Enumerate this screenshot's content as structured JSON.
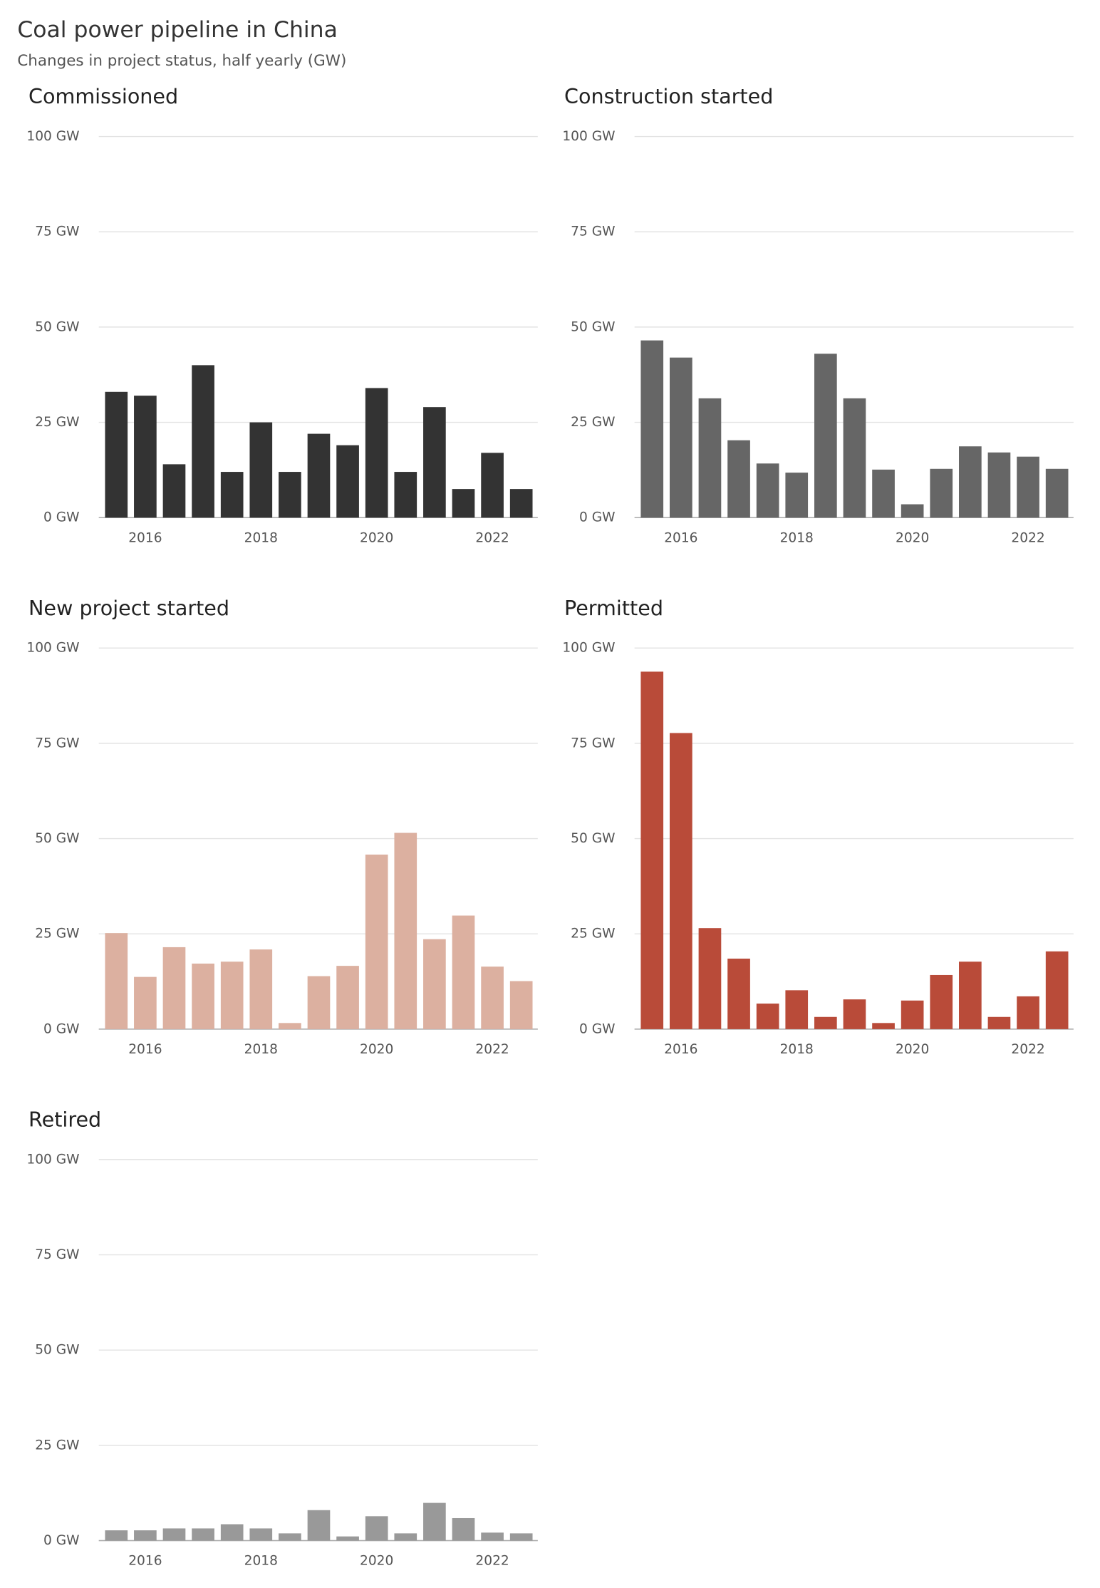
{
  "title": "Coal power pipeline in China",
  "subtitle": "Changes in project status, half yearly (GW)",
  "chart_data": [
    {
      "type": "bar",
      "title": "Commissioned",
      "color": "#333333",
      "categories": [
        null,
        "2016",
        null,
        null,
        null,
        "2018",
        null,
        null,
        null,
        "2020",
        null,
        null,
        null,
        "2022",
        null
      ],
      "values": [
        33,
        32,
        14,
        40,
        12,
        25,
        12,
        22,
        19,
        34,
        12,
        29,
        7.5,
        17,
        7.5
      ],
      "ylim": [
        0,
        100
      ],
      "yticks": [
        {
          "value": 0,
          "label": "0 GW"
        },
        {
          "value": 25,
          "label": "25 GW"
        },
        {
          "value": 50,
          "label": "50 GW"
        },
        {
          "value": 75,
          "label": "75 GW"
        },
        {
          "value": 100,
          "label": "100 GW"
        }
      ],
      "grid": true
    },
    {
      "type": "bar",
      "title": "Construction started",
      "color": "#666666",
      "categories": [
        null,
        "2016",
        null,
        null,
        null,
        "2018",
        null,
        null,
        null,
        "2020",
        null,
        null,
        null,
        "2022",
        null
      ],
      "values": [
        46.5,
        42,
        31.3,
        20.3,
        14.2,
        11.8,
        43,
        31.3,
        12.6,
        3.5,
        12.8,
        18.7,
        17.1,
        16,
        12.8
      ],
      "ylim": [
        0,
        100
      ],
      "yticks": [
        {
          "value": 0,
          "label": "0 GW"
        },
        {
          "value": 25,
          "label": "25 GW"
        },
        {
          "value": 50,
          "label": "50 GW"
        },
        {
          "value": 75,
          "label": "75 GW"
        },
        {
          "value": 100,
          "label": "100 GW"
        }
      ],
      "grid": true
    },
    {
      "type": "bar",
      "title": "New project started",
      "color": "#dcb0a0",
      "categories": [
        null,
        "2016",
        null,
        null,
        null,
        "2018",
        null,
        null,
        null,
        "2020",
        null,
        null,
        null,
        "2022",
        null
      ],
      "values": [
        25.2,
        13.7,
        21.5,
        17.2,
        17.7,
        20.9,
        1.6,
        13.9,
        16.6,
        45.8,
        51.5,
        23.6,
        29.8,
        16.4,
        12.6
      ],
      "ylim": [
        0,
        100
      ],
      "yticks": [
        {
          "value": 0,
          "label": "0 GW"
        },
        {
          "value": 25,
          "label": "25 GW"
        },
        {
          "value": 50,
          "label": "50 GW"
        },
        {
          "value": 75,
          "label": "75 GW"
        },
        {
          "value": 100,
          "label": "100 GW"
        }
      ],
      "grid": true
    },
    {
      "type": "bar",
      "title": "Permitted",
      "color": "#b94b39",
      "categories": [
        null,
        "2016",
        null,
        null,
        null,
        "2018",
        null,
        null,
        null,
        "2020",
        null,
        null,
        null,
        "2022",
        null
      ],
      "values": [
        93.8,
        77.7,
        26.5,
        18.5,
        6.7,
        10.2,
        3.2,
        7.8,
        1.6,
        7.5,
        14.2,
        17.7,
        3.2,
        8.6,
        20.4
      ],
      "ylim": [
        0,
        100
      ],
      "yticks": [
        {
          "value": 0,
          "label": "0 GW"
        },
        {
          "value": 25,
          "label": "25 GW"
        },
        {
          "value": 50,
          "label": "50 GW"
        },
        {
          "value": 75,
          "label": "75 GW"
        },
        {
          "value": 100,
          "label": "100 GW"
        }
      ],
      "grid": true
    },
    {
      "type": "bar",
      "title": "Retired",
      "color": "#999999",
      "categories": [
        null,
        "2016",
        null,
        null,
        null,
        "2018",
        null,
        null,
        null,
        "2020",
        null,
        null,
        null,
        "2022",
        null
      ],
      "values": [
        2.7,
        2.7,
        3.2,
        3.2,
        4.3,
        3.2,
        1.9,
        8,
        1.1,
        6.4,
        1.9,
        9.9,
        5.9,
        2.1,
        1.9
      ],
      "ylim": [
        0,
        100
      ],
      "yticks": [
        {
          "value": 0,
          "label": "0 GW"
        },
        {
          "value": 25,
          "label": "25 GW"
        },
        {
          "value": 50,
          "label": "50 GW"
        },
        {
          "value": 75,
          "label": "75 GW"
        },
        {
          "value": 100,
          "label": "100 GW"
        }
      ],
      "grid": true
    }
  ]
}
